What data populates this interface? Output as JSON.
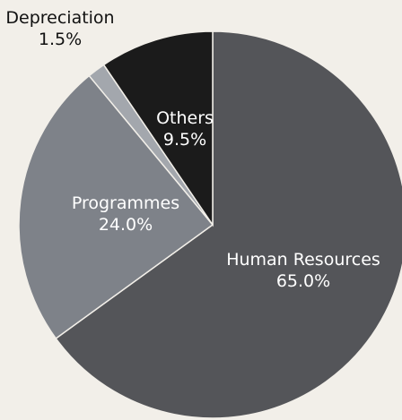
{
  "chart_data": {
    "type": "pie",
    "title": "",
    "start_angle_deg": 0,
    "direction": "clockwise",
    "slices": [
      {
        "name": "Human Resources",
        "value": 65.0,
        "label_value": "65.0%",
        "color": "#545559",
        "label_color": "#ffffff"
      },
      {
        "name": "Programmes",
        "value": 24.0,
        "label_value": "24.0%",
        "color": "#7e8289",
        "label_color": "#ffffff"
      },
      {
        "name": "Depreciation",
        "value": 1.5,
        "label_value": "1.5%",
        "color": "#a3a7ad",
        "label_color": "#111111"
      },
      {
        "name": "Others",
        "value": 9.5,
        "label_value": "9.5%",
        "color": "#1b1b1b",
        "label_color": "#ffffff"
      }
    ],
    "legend": "none"
  }
}
